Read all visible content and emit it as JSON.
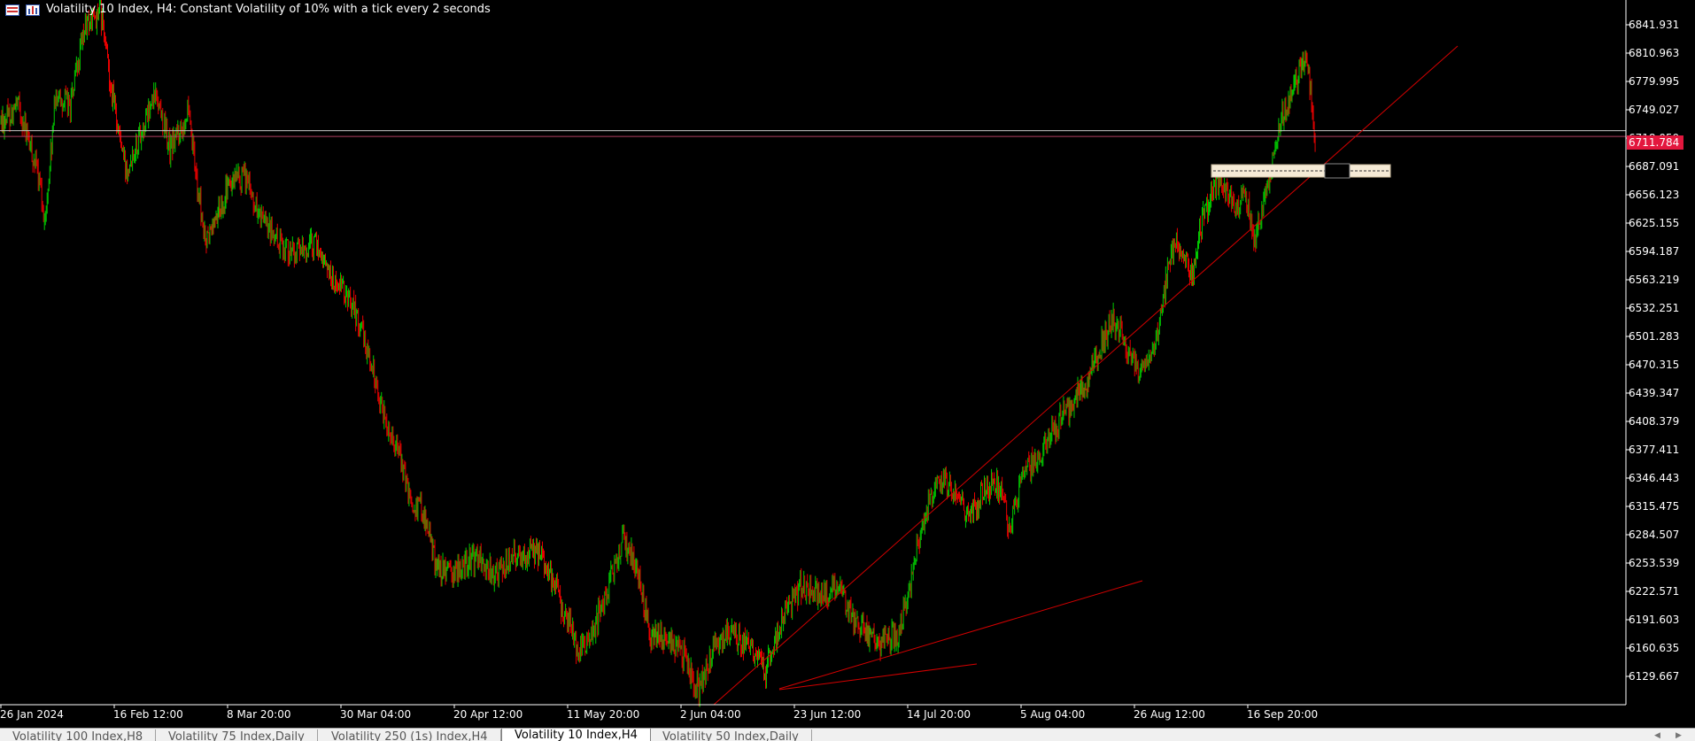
{
  "window": {
    "title": "Volatility 10 Index, H4:  Constant Volatility of 10% with a tick every 2 seconds",
    "icons": [
      "list-icon",
      "chart-icon"
    ]
  },
  "colors": {
    "background": "#000000",
    "bull_candle": "#00cc00",
    "bear_candle": "#e80000",
    "axis_text": "#ffffff",
    "trendline": "#d40000",
    "price_line": "#c8c8c8",
    "price_tag": "#e3173e",
    "zone_fill": "#f5ead6"
  },
  "chart_data": {
    "type": "candlestick",
    "symbol": "Volatility 10 Index",
    "timeframe": "H4",
    "current_price": "6711.784",
    "price_ticks": [
      "6841.931",
      "6810.963",
      "6779.995",
      "6749.027",
      "6718.059",
      "6687.091",
      "6656.123",
      "6625.155",
      "6594.187",
      "6563.219",
      "6532.251",
      "6501.283",
      "6470.315",
      "6439.347",
      "6408.379",
      "6377.411",
      "6346.443",
      "6315.475",
      "6284.507",
      "6253.539",
      "6222.571",
      "6191.603",
      "6160.635",
      "6129.667"
    ],
    "time_ticks": [
      "26 Jan 2024",
      "16 Feb 12:00",
      "8 Mar 20:00",
      "30 Mar 04:00",
      "20 Apr 12:00",
      "11 May 20:00",
      "2 Jun 04:00",
      "23 Jun 12:00",
      "14 Jul 20:00",
      "5 Aug 04:00",
      "26 Aug 12:00",
      "16 Sep 20:00"
    ],
    "ylim": [
      6114,
      6858
    ],
    "path": [
      [
        0,
        6730
      ],
      [
        20,
        6745
      ],
      [
        40,
        6680
      ],
      [
        50,
        6625
      ],
      [
        62,
        6760
      ],
      [
        78,
        6745
      ],
      [
        95,
        6830
      ],
      [
        112,
        6845
      ],
      [
        125,
        6760
      ],
      [
        140,
        6680
      ],
      [
        158,
        6720
      ],
      [
        175,
        6760
      ],
      [
        190,
        6700
      ],
      [
        210,
        6740
      ],
      [
        230,
        6600
      ],
      [
        255,
        6660
      ],
      [
        275,
        6670
      ],
      [
        295,
        6620
      ],
      [
        315,
        6600
      ],
      [
        335,
        6590
      ],
      [
        355,
        6600
      ],
      [
        375,
        6560
      ],
      [
        395,
        6540
      ],
      [
        415,
        6480
      ],
      [
        430,
        6420
      ],
      [
        445,
        6390
      ],
      [
        460,
        6330
      ],
      [
        475,
        6320
      ],
      [
        490,
        6260
      ],
      [
        505,
        6250
      ],
      [
        520,
        6260
      ],
      [
        535,
        6270
      ],
      [
        555,
        6250
      ],
      [
        575,
        6270
      ],
      [
        590,
        6275
      ],
      [
        610,
        6270
      ],
      [
        630,
        6220
      ],
      [
        650,
        6170
      ],
      [
        665,
        6190
      ],
      [
        680,
        6230
      ],
      [
        700,
        6290
      ],
      [
        715,
        6260
      ],
      [
        730,
        6190
      ],
      [
        750,
        6180
      ],
      [
        765,
        6170
      ],
      [
        785,
        6130
      ],
      [
        800,
        6170
      ],
      [
        820,
        6190
      ],
      [
        835,
        6180
      ],
      [
        860,
        6150
      ],
      [
        880,
        6210
      ],
      [
        900,
        6240
      ],
      [
        920,
        6230
      ],
      [
        940,
        6240
      ],
      [
        960,
        6200
      ],
      [
        975,
        6190
      ],
      [
        990,
        6180
      ],
      [
        1010,
        6190
      ],
      [
        1030,
        6275
      ],
      [
        1045,
        6330
      ],
      [
        1060,
        6350
      ],
      [
        1075,
        6340
      ],
      [
        1090,
        6310
      ],
      [
        1105,
        6340
      ],
      [
        1120,
        6350
      ],
      [
        1135,
        6300
      ],
      [
        1150,
        6360
      ],
      [
        1165,
        6370
      ],
      [
        1180,
        6400
      ],
      [
        1195,
        6420
      ],
      [
        1210,
        6440
      ],
      [
        1225,
        6460
      ],
      [
        1240,
        6500
      ],
      [
        1250,
        6520
      ],
      [
        1260,
        6510
      ],
      [
        1270,
        6480
      ],
      [
        1280,
        6460
      ],
      [
        1290,
        6470
      ],
      [
        1300,
        6500
      ],
      [
        1310,
        6560
      ],
      [
        1320,
        6600
      ],
      [
        1330,
        6590
      ],
      [
        1340,
        6570
      ],
      [
        1350,
        6620
      ],
      [
        1360,
        6650
      ],
      [
        1370,
        6670
      ],
      [
        1380,
        6660
      ],
      [
        1390,
        6640
      ],
      [
        1400,
        6650
      ],
      [
        1410,
        6600
      ],
      [
        1420,
        6640
      ],
      [
        1430,
        6690
      ],
      [
        1440,
        6730
      ],
      [
        1450,
        6750
      ],
      [
        1460,
        6785
      ],
      [
        1466,
        6790
      ],
      [
        1472,
        6770
      ],
      [
        1478,
        6710
      ]
    ],
    "trendlines": [
      {
        "from": [
          "2 Jun 2024",
          6114
        ],
        "to": [
          "30 Sep 2024",
          6820
        ]
      },
      {
        "from": [
          "9 Jun 2024",
          6117
        ],
        "to": [
          "14 Jul 2024",
          6235
        ]
      },
      {
        "from": [
          "9 Jun 2024",
          6118
        ],
        "to": [
          "24 Jun 2024",
          6150
        ]
      }
    ],
    "horizontal_lines": [
      6720,
      6714
    ],
    "zone": {
      "top": 6691,
      "bottom": 6678
    }
  },
  "tabs": [
    {
      "label": "Volatility 100 Index,H8"
    },
    {
      "label": "Volatility 75 Index,Daily"
    },
    {
      "label": "Volatility 250 (1s) Index,H4"
    },
    {
      "label": "Volatility 10 Index,H4"
    },
    {
      "label": "Volatility 50 Index,Daily"
    }
  ],
  "active_tab": 3
}
